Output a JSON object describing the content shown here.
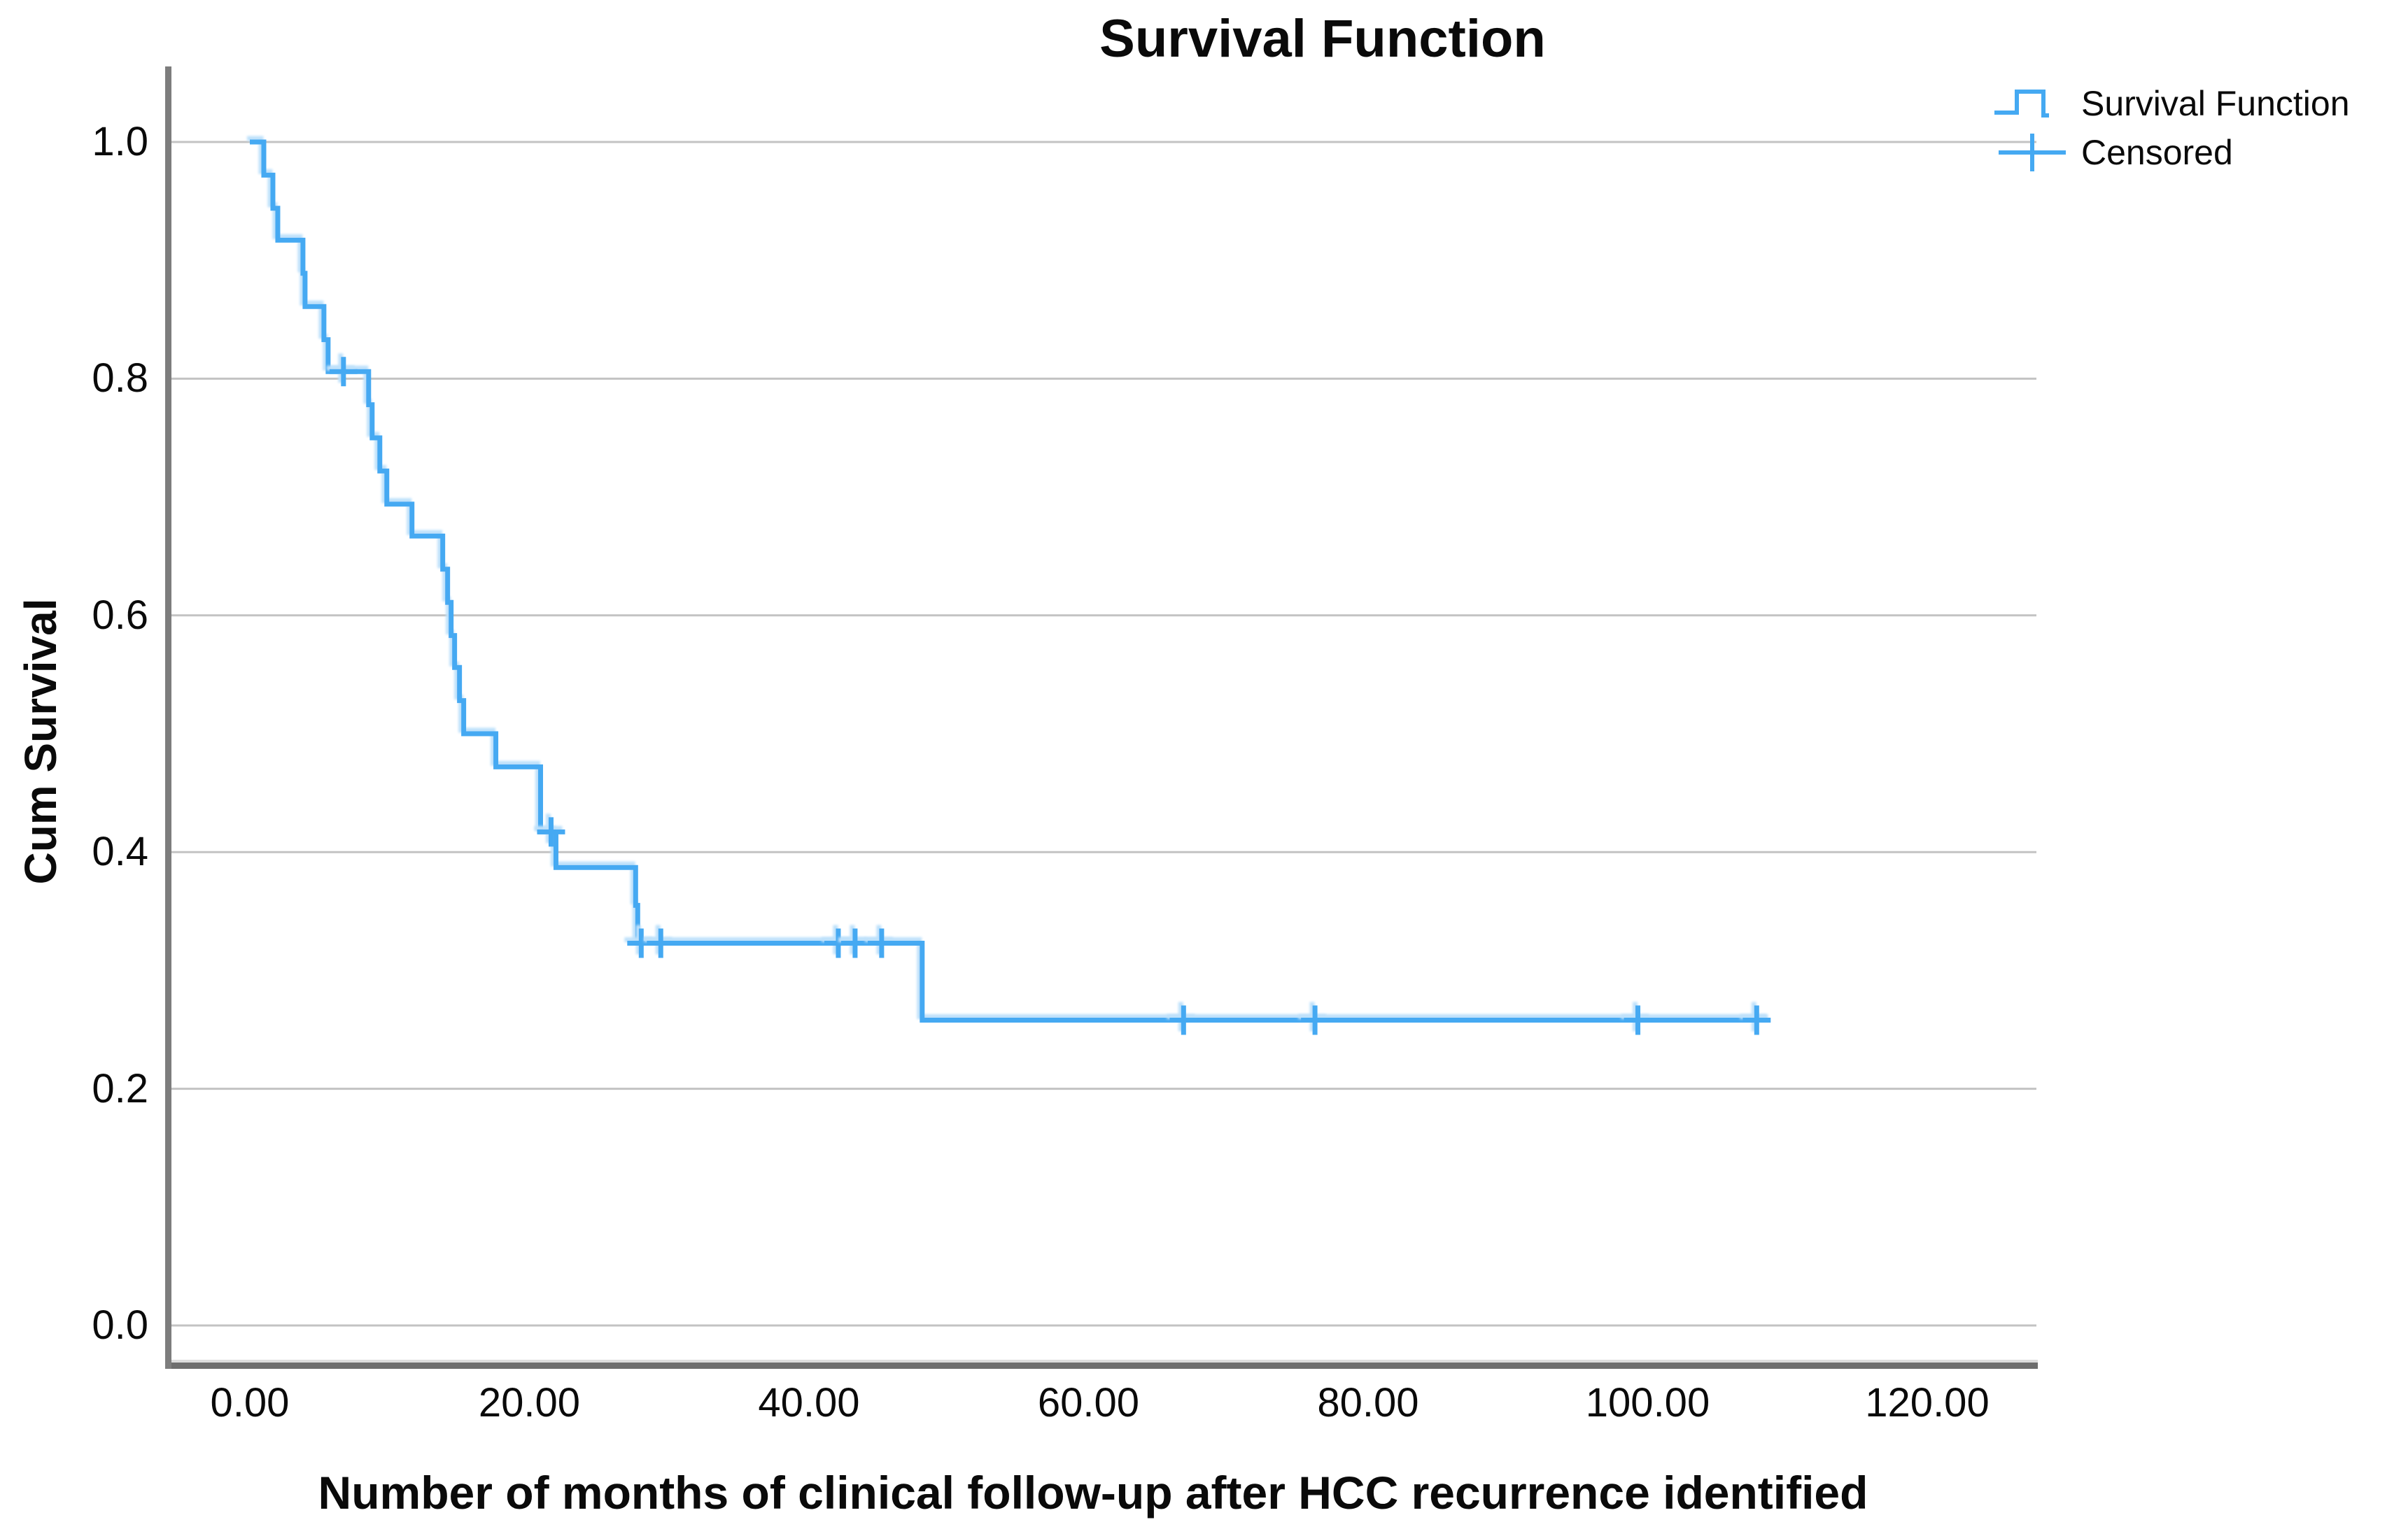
{
  "figure": {
    "title": "Survival Function"
  },
  "legend": {
    "items": [
      {
        "label": "Survival Function",
        "symbol": "step-line-swatch"
      },
      {
        "label": "Censored",
        "symbol": "plus-swatch"
      }
    ]
  },
  "axes": {
    "x": {
      "title": "Number of months of clinical follow-up after HCC recurrence identified",
      "tick_labels": [
        "0.00",
        "20.00",
        "40.00",
        "60.00",
        "80.00",
        "100.00",
        "120.00"
      ]
    },
    "y": {
      "title": "Cum Survival",
      "tick_labels": [
        "1.0",
        "0.8",
        "0.6",
        "0.4",
        "0.2",
        "0.0"
      ]
    }
  },
  "colors": {
    "curve_blue": "#45a9f2",
    "halo_blue": "#bee1fb",
    "gridline_grey": "#c3c3c3",
    "spine_dark": "#6e6e6e",
    "spine_mid": "#7d7d7d",
    "spine_light": "#dcdcdc",
    "text_black": "#0a0a0a",
    "background": "#ffffff"
  },
  "chart_data": {
    "type": "line",
    "subtype": "kaplan-meier-step",
    "title": "Survival Function",
    "xlabel": "Number of months of clinical follow-up after HCC recurrence identified",
    "ylabel": "Cum Survival",
    "xlim": [
      0,
      120
    ],
    "ylim": [
      0.0,
      1.0
    ],
    "xticks": [
      0,
      20,
      40,
      60,
      80,
      100,
      120
    ],
    "yticks": [
      1.0,
      0.8,
      0.6,
      0.4,
      0.2,
      0.0
    ],
    "grid": "horizontal-only",
    "legend_position": "top-right",
    "series": [
      {
        "name": "Survival Function",
        "type": "step",
        "points": [
          [
            0,
            1.0
          ],
          [
            1.0,
            0.972
          ],
          [
            1.65,
            0.944
          ],
          [
            2.0,
            0.917
          ],
          [
            3.8,
            0.889
          ],
          [
            3.95,
            0.861
          ],
          [
            5.3,
            0.833
          ],
          [
            5.6,
            0.806
          ],
          [
            8.5,
            0.778
          ],
          [
            8.75,
            0.75
          ],
          [
            9.3,
            0.722
          ],
          [
            9.8,
            0.694
          ],
          [
            11.6,
            0.667
          ],
          [
            13.8,
            0.639
          ],
          [
            14.15,
            0.611
          ],
          [
            14.4,
            0.583
          ],
          [
            14.65,
            0.556
          ],
          [
            15.0,
            0.528
          ],
          [
            15.3,
            0.5
          ],
          [
            17.6,
            0.472
          ],
          [
            20.8,
            0.417
          ],
          [
            21.9,
            0.387
          ],
          [
            27.6,
            0.355
          ],
          [
            27.75,
            0.323
          ],
          [
            48.1,
            0.258
          ]
        ],
        "end_x": 108.7
      },
      {
        "name": "Censored",
        "type": "scatter-plus",
        "points": [
          [
            6.7,
            0.806
          ],
          [
            21.55,
            0.417
          ],
          [
            28.0,
            0.323
          ],
          [
            29.4,
            0.323
          ],
          [
            42.1,
            0.323
          ],
          [
            43.3,
            0.323
          ],
          [
            45.2,
            0.323
          ],
          [
            66.8,
            0.258
          ],
          [
            76.2,
            0.258
          ],
          [
            99.3,
            0.258
          ],
          [
            107.8,
            0.258
          ]
        ]
      }
    ]
  }
}
